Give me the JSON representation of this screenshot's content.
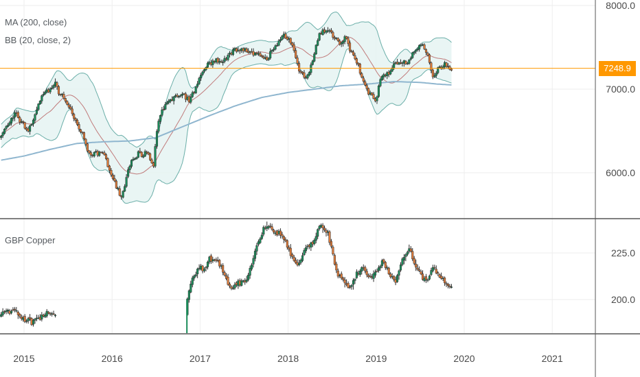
{
  "colors": {
    "up": "#26a69a",
    "down": "#ef5350",
    "body_up": "#1b8c5a",
    "body_down": "#e07b39",
    "wick": "#2b2b2b",
    "ma200": "#8fb6cf",
    "bb_mid": "#c07a7a",
    "bb_band": "#6aaea8",
    "bb_fill": "#e3f3f1",
    "last_price": "#ff9800",
    "grid": "#eeeeee",
    "axis": "#555555",
    "tick_text": "#4a4a4a"
  },
  "chart_data": [
    {
      "type": "candlestick",
      "indicators": [
        "MA (200, close)",
        "BB (20, close, 2)"
      ],
      "ylim": [
        5550,
        8050
      ],
      "y_ticks": [
        6000.0,
        7000.0,
        8000.0
      ],
      "y_tick_labels": [
        "6000.0",
        "7000.0",
        "8000.0"
      ],
      "last_price": 7248.9,
      "last_price_label": "7248.9",
      "x_start": 2014.74,
      "x_end": 2019.87,
      "close_anchors": [
        [
          2014.74,
          6450
        ],
        [
          2014.9,
          6700
        ],
        [
          2015.05,
          6500
        ],
        [
          2015.22,
          6950
        ],
        [
          2015.35,
          7050
        ],
        [
          2015.45,
          6900
        ],
        [
          2015.6,
          6600
        ],
        [
          2015.75,
          6200
        ],
        [
          2015.9,
          6250
        ],
        [
          2016.05,
          5800
        ],
        [
          2016.12,
          5750
        ],
        [
          2016.2,
          6100
        ],
        [
          2016.3,
          6250
        ],
        [
          2016.42,
          6200
        ],
        [
          2016.47,
          6050
        ],
        [
          2016.52,
          6600
        ],
        [
          2016.6,
          6800
        ],
        [
          2016.7,
          6900
        ],
        [
          2016.8,
          6950
        ],
        [
          2016.88,
          6850
        ],
        [
          2017.0,
          7150
        ],
        [
          2017.1,
          7300
        ],
        [
          2017.2,
          7350
        ],
        [
          2017.3,
          7350
        ],
        [
          2017.4,
          7500
        ],
        [
          2017.55,
          7450
        ],
        [
          2017.65,
          7400
        ],
        [
          2017.75,
          7350
        ],
        [
          2017.85,
          7500
        ],
        [
          2017.95,
          7650
        ],
        [
          2018.05,
          7550
        ],
        [
          2018.12,
          7250
        ],
        [
          2018.2,
          7100
        ],
        [
          2018.27,
          7300
        ],
        [
          2018.35,
          7650
        ],
        [
          2018.45,
          7700
        ],
        [
          2018.55,
          7600
        ],
        [
          2018.6,
          7550
        ],
        [
          2018.65,
          7600
        ],
        [
          2018.75,
          7400
        ],
        [
          2018.85,
          7100
        ],
        [
          2018.92,
          6950
        ],
        [
          2019.0,
          6850
        ],
        [
          2019.05,
          7150
        ],
        [
          2019.15,
          7200
        ],
        [
          2019.25,
          7350
        ],
        [
          2019.35,
          7300
        ],
        [
          2019.45,
          7450
        ],
        [
          2019.52,
          7550
        ],
        [
          2019.58,
          7400
        ],
        [
          2019.65,
          7150
        ],
        [
          2019.7,
          7250
        ],
        [
          2019.78,
          7300
        ],
        [
          2019.85,
          7249
        ]
      ],
      "ma200_anchors": [
        [
          2014.74,
          6150
        ],
        [
          2015.0,
          6200
        ],
        [
          2015.3,
          6280
        ],
        [
          2015.6,
          6350
        ],
        [
          2015.9,
          6370
        ],
        [
          2016.2,
          6380
        ],
        [
          2016.5,
          6420
        ],
        [
          2016.8,
          6550
        ],
        [
          2017.1,
          6680
        ],
        [
          2017.4,
          6800
        ],
        [
          2017.7,
          6900
        ],
        [
          2018.0,
          6960
        ],
        [
          2018.3,
          7000
        ],
        [
          2018.6,
          7040
        ],
        [
          2018.9,
          7060
        ],
        [
          2019.2,
          7090
        ],
        [
          2019.5,
          7080
        ],
        [
          2019.7,
          7060
        ],
        [
          2019.85,
          7050
        ]
      ]
    },
    {
      "type": "candlestick",
      "title": "GBP Copper",
      "ylim": [
        187,
        248
      ],
      "y_ticks": [
        200.0,
        225.0
      ],
      "y_tick_labels": [
        "200.0",
        "225.0"
      ],
      "x_start": 2014.74,
      "x_end": 2019.87,
      "gap": [
        2015.37,
        2016.85
      ],
      "close_anchors": [
        [
          2014.74,
          193
        ],
        [
          2014.9,
          195
        ],
        [
          2014.98,
          190
        ],
        [
          2015.08,
          188
        ],
        [
          2015.18,
          190
        ],
        [
          2015.28,
          193
        ],
        [
          2015.37,
          190
        ],
        [
          2016.85,
          200
        ],
        [
          2016.92,
          213
        ],
        [
          2017.0,
          218
        ],
        [
          2017.05,
          215
        ],
        [
          2017.1,
          222
        ],
        [
          2017.2,
          220
        ],
        [
          2017.25,
          217
        ],
        [
          2017.3,
          210
        ],
        [
          2017.35,
          205
        ],
        [
          2017.4,
          208
        ],
        [
          2017.48,
          210
        ],
        [
          2017.55,
          212
        ],
        [
          2017.62,
          225
        ],
        [
          2017.7,
          235
        ],
        [
          2017.75,
          240
        ],
        [
          2017.85,
          236
        ],
        [
          2017.95,
          233
        ],
        [
          2018.05,
          222
        ],
        [
          2018.12,
          218
        ],
        [
          2018.2,
          228
        ],
        [
          2018.28,
          230
        ],
        [
          2018.35,
          240
        ],
        [
          2018.45,
          236
        ],
        [
          2018.55,
          215
        ],
        [
          2018.62,
          210
        ],
        [
          2018.7,
          206
        ],
        [
          2018.78,
          214
        ],
        [
          2018.86,
          217
        ],
        [
          2018.93,
          212
        ],
        [
          2019.0,
          214
        ],
        [
          2019.08,
          220
        ],
        [
          2019.15,
          214
        ],
        [
          2019.22,
          210
        ],
        [
          2019.3,
          222
        ],
        [
          2019.38,
          227
        ],
        [
          2019.45,
          218
        ],
        [
          2019.52,
          212
        ],
        [
          2019.58,
          210
        ],
        [
          2019.65,
          218
        ],
        [
          2019.72,
          212
        ],
        [
          2019.8,
          208
        ],
        [
          2019.85,
          207
        ]
      ]
    }
  ],
  "x_axis": {
    "ticks": [
      2015,
      2016,
      2017,
      2018,
      2019,
      2020,
      2021
    ],
    "tick_labels": [
      "2015",
      "2016",
      "2017",
      "2018",
      "2019",
      "2020",
      "2021"
    ]
  }
}
